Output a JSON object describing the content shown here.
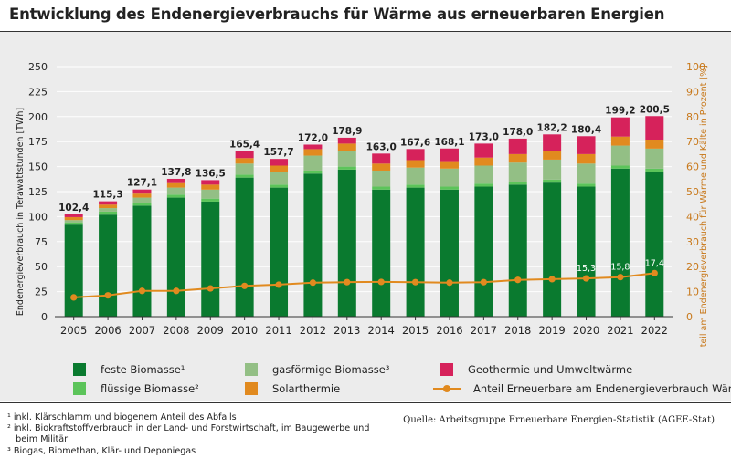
{
  "title": "Entwicklung des Endenergieverbrauchs für Wärme aus erneuerbaren Energien",
  "source": "Quelle: Arbeitsgruppe Erneuerbare Energien-Statistik (AGEE-Stat)",
  "footnotes": [
    "¹ inkl. Klärschlamm und biogenem Anteil des Abfalls",
    "² inkl. Biokraftstoffverbrauch in der Land- und Forstwirtschaft, im Baugewerbe und",
    "   beim Militär",
    "³ Biogas, Biomethan, Klär- und Deponiegas"
  ],
  "legend": {
    "feste": "feste Biomasse¹",
    "fluessige": "flüssige Biomasse²",
    "gas": "gasförmige Biomasse³",
    "solar": "Solarthermie",
    "geo": "Geothermie und Umweltwärme",
    "line": "Anteil Erneuerbare am Endenergieverbrauch Wärme"
  },
  "colors": {
    "feste": "#0a7a2f",
    "fluessige": "#5cc45a",
    "gas": "#93bf85",
    "solar": "#e18a1f",
    "geo": "#d6225b",
    "line": "#e18a1f"
  },
  "chart_data": {
    "type": "bar",
    "stacked": true,
    "categories": [
      "2005",
      "2006",
      "2007",
      "2008",
      "2009",
      "2010",
      "2011",
      "2012",
      "2013",
      "2014",
      "2015",
      "2016",
      "2017",
      "2018",
      "2019",
      "2020",
      "2021",
      "2022"
    ],
    "ylabel": "Endenergieverbrauch in Terawattstunden [TWh]",
    "y2label": "Anteil am Endenergieverbrauch für Wärme und Kälte in Prozent [%]",
    "ylim": [
      0,
      250
    ],
    "y2lim": [
      0,
      100
    ],
    "yticks": [
      0,
      25,
      50,
      75,
      100,
      125,
      150,
      175,
      200,
      225,
      250
    ],
    "y2ticks": [
      0,
      10,
      20,
      30,
      40,
      50,
      60,
      70,
      80,
      90,
      100
    ],
    "totals": [
      "102,4",
      "115,3",
      "127,1",
      "137,8",
      "136,5",
      "165,4",
      "157,7",
      "172,0",
      "178,9",
      "163,0",
      "167,6",
      "168,1",
      "173,0",
      "178,0",
      "182,2",
      "180,4",
      "199,2",
      "200,5"
    ],
    "series": [
      {
        "name": "feste Biomasse¹",
        "values": [
          92,
          102,
          111,
          119,
          115,
          139,
          129,
          143,
          147,
          127,
          129,
          127,
          130,
          132,
          134,
          130,
          148,
          145
        ]
      },
      {
        "name": "flüssige Biomasse²",
        "values": [
          2,
          3,
          3,
          3,
          3,
          3,
          3,
          3,
          3,
          3,
          3,
          3,
          3,
          3,
          3,
          3,
          3,
          3
        ]
      },
      {
        "name": "gasförmige Biomasse³",
        "values": [
          2.5,
          3.5,
          5,
          7,
          9,
          11,
          13,
          15,
          16,
          16,
          17,
          18,
          18,
          19,
          20,
          20,
          20,
          20
        ]
      },
      {
        "name": "Solarthermie",
        "values": [
          3,
          3.5,
          4,
          4.5,
          5,
          5.5,
          6,
          6.5,
          7,
          7,
          7.5,
          7.5,
          8,
          8.5,
          9,
          9.5,
          9,
          9
        ]
      },
      {
        "name": "Geothermie und Umweltwärme",
        "values": [
          2.9,
          3.3,
          4.1,
          4.3,
          4.5,
          6.9,
          6.7,
          4.5,
          5.9,
          10,
          11.1,
          12.6,
          14,
          15.5,
          16.2,
          17.9,
          19.2,
          23.5
        ]
      }
    ],
    "line": {
      "name": "Anteil Erneuerbare am Endenergieverbrauch Wärme",
      "values": [
        7.7,
        8.5,
        10.3,
        10.3,
        11.3,
        12.3,
        12.8,
        13.6,
        13.8,
        13.9,
        13.8,
        13.6,
        13.8,
        14.7,
        15.0,
        15.3,
        15.8,
        17.4
      ],
      "labels": {
        "15": "15,3",
        "16": "15,8",
        "17": "17,4"
      }
    }
  }
}
